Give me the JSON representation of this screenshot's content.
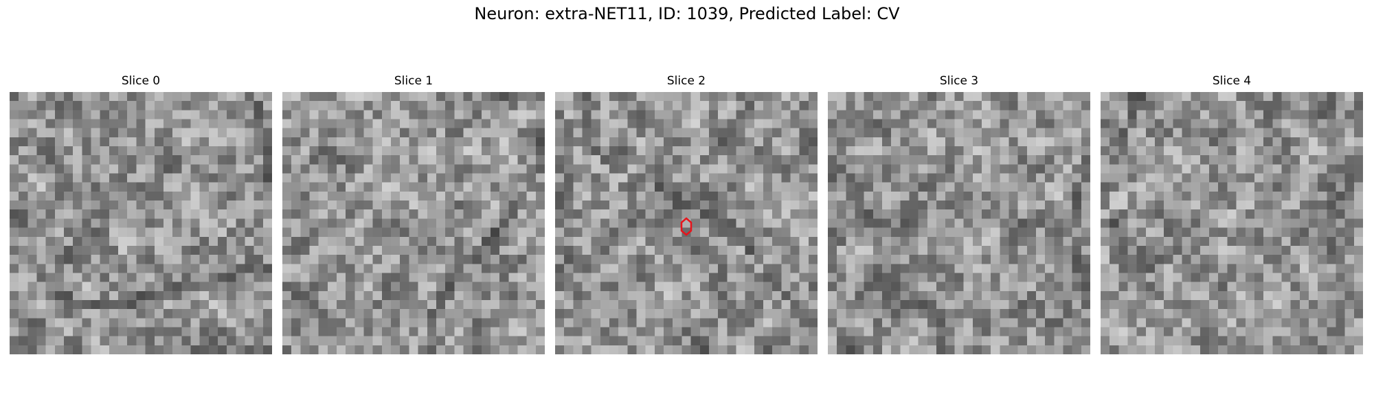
{
  "figure": {
    "title": "Neuron: extra-NET11, ID: 1039, Predicted Label: CV"
  },
  "panels": [
    {
      "title": "Slice 0",
      "seed": 11,
      "marker": false
    },
    {
      "title": "Slice 1",
      "seed": 23,
      "marker": false
    },
    {
      "title": "Slice 2",
      "seed": 37,
      "marker": true
    },
    {
      "title": "Slice 3",
      "seed": 51,
      "marker": false
    },
    {
      "title": "Slice 4",
      "seed": 67,
      "marker": false
    }
  ],
  "image": {
    "grid_cells": 29,
    "colormap": "gray"
  },
  "marker": {
    "color": "#e8141b",
    "shape": "hexagon"
  }
}
